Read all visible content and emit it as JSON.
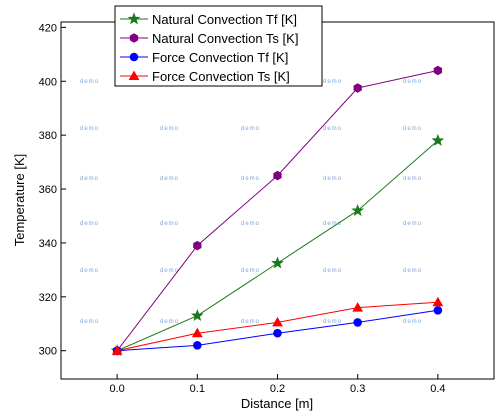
{
  "chart_data": {
    "type": "line",
    "title": "",
    "xlabel": "Distance [m]",
    "ylabel": "Temperature [K]",
    "x": [
      0.0,
      0.1,
      0.2,
      0.3,
      0.4
    ],
    "x_tick_labels": [
      "0.0",
      "0.1",
      "0.2",
      "0.3",
      "0.4"
    ],
    "xlim": [
      -0.07,
      0.47
    ],
    "y_ticks": [
      300,
      320,
      340,
      360,
      380,
      400,
      420
    ],
    "y_tick_labels": [
      "300",
      "320",
      "340",
      "360",
      "380",
      "400",
      "420"
    ],
    "ylim": [
      289.5,
      422
    ],
    "grid": false,
    "legend_position": "top",
    "series": [
      {
        "name": "Natural Convection Tf [K]",
        "color": "#1a7a1a",
        "marker": "star",
        "values": [
          300,
          313,
          332.5,
          352,
          378
        ]
      },
      {
        "name": "Natural Convection Ts [K]",
        "color": "#800080",
        "marker": "hexagon",
        "values": [
          300,
          339,
          365,
          397.5,
          404
        ]
      },
      {
        "name": "Force Convection Tf [K]",
        "color": "#0000ff",
        "marker": "circle",
        "values": [
          300,
          302,
          306.5,
          310.5,
          315
        ]
      },
      {
        "name": "Force Convection Ts [K]",
        "color": "#ff0000",
        "marker": "triangle",
        "values": [
          300,
          306.5,
          310.5,
          316,
          318
        ]
      }
    ],
    "watermark": "demo"
  }
}
